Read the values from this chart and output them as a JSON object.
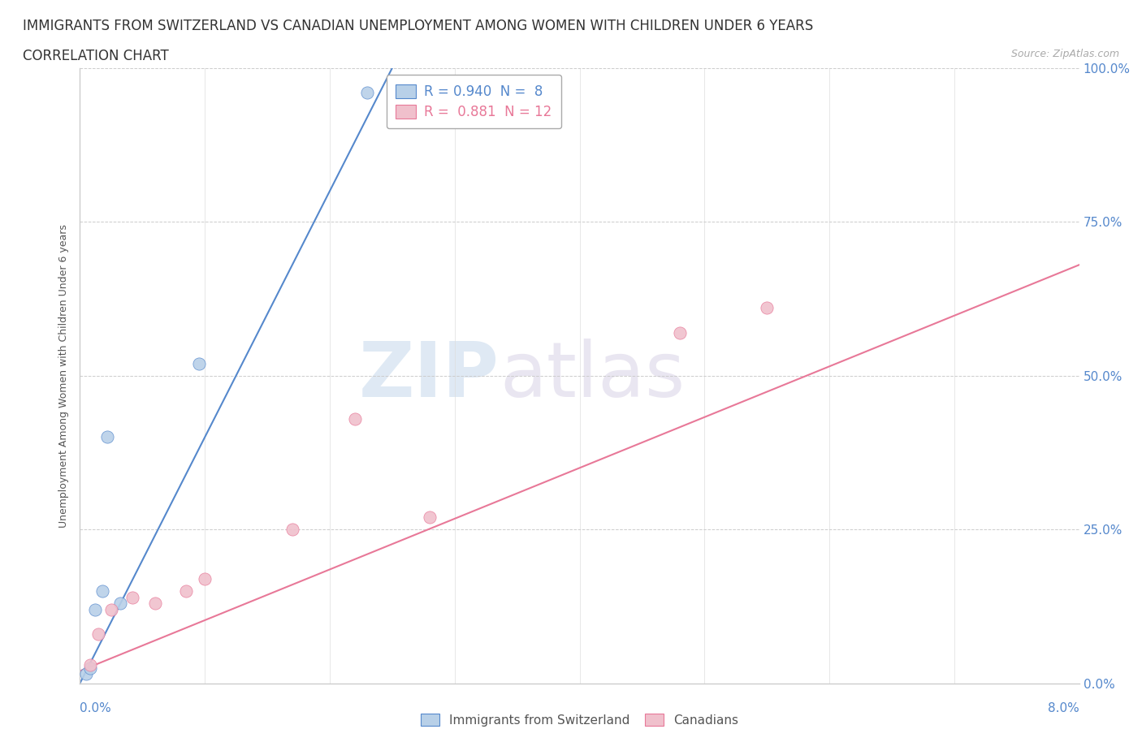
{
  "title_line1": "IMMIGRANTS FROM SWITZERLAND VS CANADIAN UNEMPLOYMENT AMONG WOMEN WITH CHILDREN UNDER 6 YEARS",
  "title_line2": "CORRELATION CHART",
  "source": "Source: ZipAtlas.com",
  "ylabel": "Unemployment Among Women with Children Under 6 years",
  "y_tick_labels": [
    "0.0%",
    "25.0%",
    "50.0%",
    "75.0%",
    "100.0%"
  ],
  "y_tick_values": [
    0,
    25,
    50,
    75,
    100
  ],
  "x_range": [
    0,
    8
  ],
  "y_range": [
    0,
    100
  ],
  "legend_blue_label": "R = 0.940  N =  8",
  "legend_pink_label": "R =  0.881  N = 12",
  "blue_scatter_x": [
    0.05,
    0.08,
    0.12,
    0.18,
    0.22,
    0.32,
    0.95,
    2.3
  ],
  "blue_scatter_y": [
    1.5,
    2.5,
    12,
    15,
    40,
    13,
    52,
    96
  ],
  "pink_scatter_x": [
    0.08,
    0.15,
    0.25,
    0.42,
    0.6,
    0.85,
    1.0,
    1.7,
    2.2,
    2.8,
    4.8,
    5.5
  ],
  "pink_scatter_y": [
    3,
    8,
    12,
    14,
    13,
    15,
    17,
    25,
    43,
    27,
    57,
    61
  ],
  "blue_line_x": [
    0.0,
    2.5
  ],
  "blue_line_y": [
    0,
    100
  ],
  "pink_line_x": [
    0.0,
    8.0
  ],
  "pink_line_y": [
    2,
    68
  ],
  "blue_color": "#b8d0e8",
  "blue_line_color": "#5588cc",
  "pink_color": "#f0c0cc",
  "pink_line_color": "#e87898",
  "background_color": "#ffffff",
  "watermark_zip": "ZIP",
  "watermark_atlas": "atlas",
  "scatter_size": 120,
  "title_fontsize": 12,
  "subtitle_fontsize": 12,
  "axis_label_fontsize": 9,
  "tick_fontsize": 11,
  "legend_fontsize": 12
}
